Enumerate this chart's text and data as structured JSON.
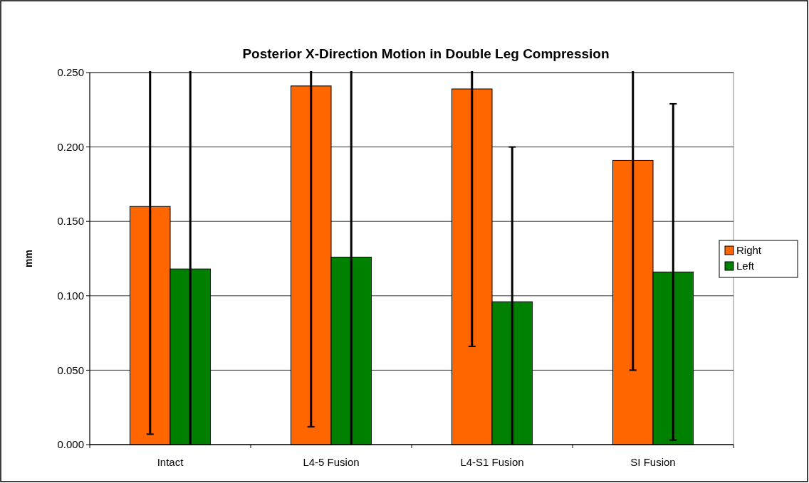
{
  "chart_data": {
    "type": "bar",
    "title": "Posterior X-Direction Motion in Double Leg Compression",
    "ylabel": "mm",
    "categories": [
      "Intact",
      "L4-5 Fusion",
      "L4-S1 Fusion",
      "SI Fusion"
    ],
    "series": [
      {
        "name": "Right",
        "color": "#ff6600",
        "values": [
          0.16,
          0.241,
          0.239,
          0.191
        ],
        "errors": [
          [
            0.007,
            0.25
          ],
          [
            0.012,
            0.25
          ],
          [
            0.066,
            0.25
          ],
          [
            0.05,
            0.25
          ]
        ]
      },
      {
        "name": "Left",
        "color": "#008000",
        "values": [
          0.118,
          0.126,
          0.096,
          0.116
        ],
        "errors": [
          [
            0,
            0.25
          ],
          [
            0,
            0.25
          ],
          [
            0,
            0.2
          ],
          [
            0.003,
            0.229
          ]
        ]
      }
    ],
    "ylim": [
      0,
      0.25
    ],
    "yticks": [
      {
        "value": 0,
        "label": "0.000"
      },
      {
        "value": 0.05,
        "label": "0.050"
      },
      {
        "value": 0.1,
        "label": "0.100"
      },
      {
        "value": 0.15,
        "label": "0.150"
      },
      {
        "value": 0.2,
        "label": "0.200"
      },
      {
        "value": 0.25,
        "label": "0.250"
      }
    ],
    "grid": "y",
    "legend": "right"
  }
}
